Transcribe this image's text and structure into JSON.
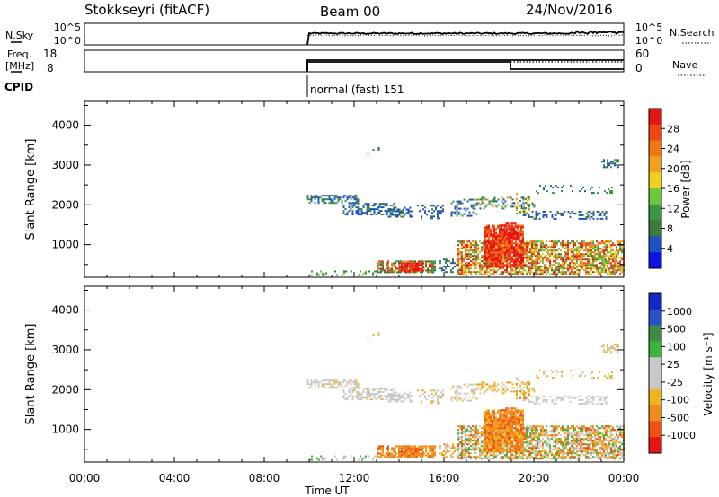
{
  "header": {
    "title": "Stokkseyri (fitACF)",
    "beam": "Beam 00",
    "date": "24/Nov/2016"
  },
  "noise_panel": {
    "left_label": "N.Sky",
    "right_label": "N.Search",
    "left_ticks": [
      "10^5",
      "10^0"
    ],
    "right_ticks": [
      "10^5",
      "10^0"
    ]
  },
  "freq_panel": {
    "left_label_line1": "Freq.",
    "left_label_line2": "[MHz]",
    "right_label": "Nave",
    "left_ticks": [
      "18",
      "8"
    ],
    "right_ticks": [
      "60",
      "0"
    ]
  },
  "cpid": {
    "label": "CPID",
    "mode": "normal (fast) 151"
  },
  "colors": {
    "power": [
      "#0a14e6",
      "#1e50c8",
      "#3a7a3a",
      "#3c9646",
      "#6ec83c",
      "#f0d21e",
      "#f0a01e",
      "#f07814",
      "#f04614",
      "#e61414"
    ],
    "velocity": [
      "#e61414",
      "#f05014",
      "#f08c1e",
      "#f0b41e",
      "#c8c8c8",
      "#c8c8c8",
      "#3cb43c",
      "#3c8c46",
      "#2850c8",
      "#1428c8"
    ]
  },
  "chart_data": [
    {
      "type": "heatmap",
      "name": "power-panel",
      "ylabel": "Slant Range [km]",
      "colorbar_label": "Power [dB]",
      "colorbar_ticks": [
        "4",
        "8",
        "12",
        "16",
        "20",
        "24",
        "28"
      ],
      "yticks": [
        "1000",
        "2000",
        "3000",
        "4000"
      ],
      "ylim": [
        180,
        4600
      ],
      "xlim_hours": [
        0,
        24
      ]
    },
    {
      "type": "heatmap",
      "name": "velocity-panel",
      "ylabel": "Slant Range [km]",
      "colorbar_label": "Velocity [m s⁻¹]",
      "colorbar_ticks": [
        "-1000",
        "-500",
        "-100",
        "-25",
        "25",
        "100",
        "500",
        "1000"
      ],
      "yticks": [
        "1000",
        "2000",
        "3000",
        "4000"
      ],
      "ylim": [
        180,
        4600
      ],
      "xlim_hours": [
        0,
        24
      ]
    }
  ],
  "time_axis": {
    "xlabel": "Time UT",
    "ticks": [
      "00:00",
      "04:00",
      "08:00",
      "12:00",
      "16:00",
      "20:00",
      "00:00"
    ]
  }
}
